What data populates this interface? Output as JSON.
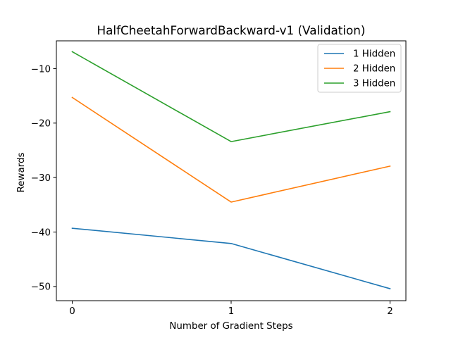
{
  "chart_data": {
    "type": "line",
    "title": "HalfCheetahForwardBackward-v1 (Validation)",
    "xlabel": "Number of Gradient Steps",
    "ylabel": "Rewards",
    "x": [
      0,
      1,
      2
    ],
    "xticks": [
      0,
      1,
      2
    ],
    "xtick_labels": [
      "0",
      "1",
      "2"
    ],
    "yticks": [
      -50,
      -40,
      -30,
      -20,
      -10
    ],
    "ytick_labels": [
      "−50",
      "−40",
      "−30",
      "−20",
      "−10"
    ],
    "xlim": [
      -0.1,
      2.1
    ],
    "ylim": [
      -52.6,
      -4.9
    ],
    "grid": false,
    "legend_position": "top-right",
    "series": [
      {
        "name": "1 Hidden",
        "color": "#1f77b4",
        "values": [
          -39.3,
          -42.1,
          -50.4
        ]
      },
      {
        "name": "2 Hidden",
        "color": "#ff7f0e",
        "values": [
          -15.3,
          -34.5,
          -27.9
        ]
      },
      {
        "name": "3 Hidden",
        "color": "#2ca02c",
        "values": [
          -6.9,
          -23.4,
          -17.9
        ]
      }
    ]
  }
}
